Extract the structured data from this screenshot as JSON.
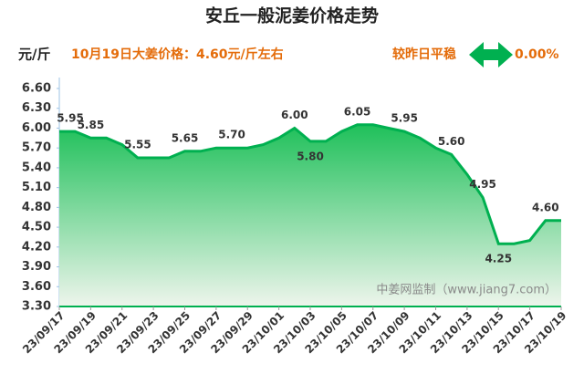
{
  "chart_data": {
    "type": "area",
    "title": "安丘一般泥姜价格走势",
    "unit": "元/斤",
    "subtitle": "10月19日大姜价格：4.60元/斤左右",
    "status": "较昨日平稳",
    "change": "0.00%",
    "annotation": "中姜网监制（www.jiang7.com）",
    "categories": [
      "23/09/17",
      null,
      "23/09/19",
      null,
      "23/09/21",
      null,
      "23/09/23",
      null,
      "23/09/25",
      null,
      "23/09/27",
      null,
      "23/09/29",
      null,
      "23/10/01",
      null,
      "23/10/03",
      null,
      "23/10/05",
      null,
      "23/10/07",
      null,
      "23/10/09",
      null,
      "23/10/11",
      null,
      "23/10/13",
      null,
      "23/10/15",
      null,
      "23/10/17",
      null,
      "23/10/19"
    ],
    "values": [
      5.95,
      5.95,
      5.85,
      5.85,
      5.75,
      5.55,
      5.55,
      5.55,
      5.65,
      5.65,
      5.7,
      5.7,
      5.7,
      5.75,
      5.85,
      6.0,
      5.8,
      5.8,
      5.95,
      6.05,
      6.05,
      6.0,
      5.95,
      5.85,
      5.7,
      5.6,
      5.3,
      4.95,
      4.25,
      4.25,
      4.3,
      4.6,
      4.6
    ],
    "value_labels": [
      "5.95",
      null,
      "5.85",
      null,
      null,
      "5.55",
      null,
      null,
      "5.65",
      null,
      null,
      "5.70",
      null,
      null,
      null,
      "6.00",
      "5.80",
      null,
      null,
      "6.05",
      null,
      null,
      "5.95",
      null,
      null,
      "5.60",
      null,
      "4.95",
      "4.25",
      null,
      null,
      "4.60",
      null
    ],
    "color": "#00b050",
    "ylim": [
      3.3,
      6.6
    ],
    "yticks": [
      {
        "value": 3.3,
        "label": "3.30"
      },
      {
        "value": 3.6,
        "label": "3.60"
      },
      {
        "value": 3.9,
        "label": "3.90"
      },
      {
        "value": 4.2,
        "label": "4.20"
      },
      {
        "value": 4.5,
        "label": "4.50"
      },
      {
        "value": 4.8,
        "label": "4.80"
      },
      {
        "value": 5.1,
        "label": "5.10"
      },
      {
        "value": 5.4,
        "label": "5.40"
      },
      {
        "value": 5.7,
        "label": "5.70"
      },
      {
        "value": 6.0,
        "label": "6.00"
      },
      {
        "value": 6.3,
        "label": "6.30"
      },
      {
        "value": 6.6,
        "label": "6.60"
      }
    ],
    "grid": false
  }
}
